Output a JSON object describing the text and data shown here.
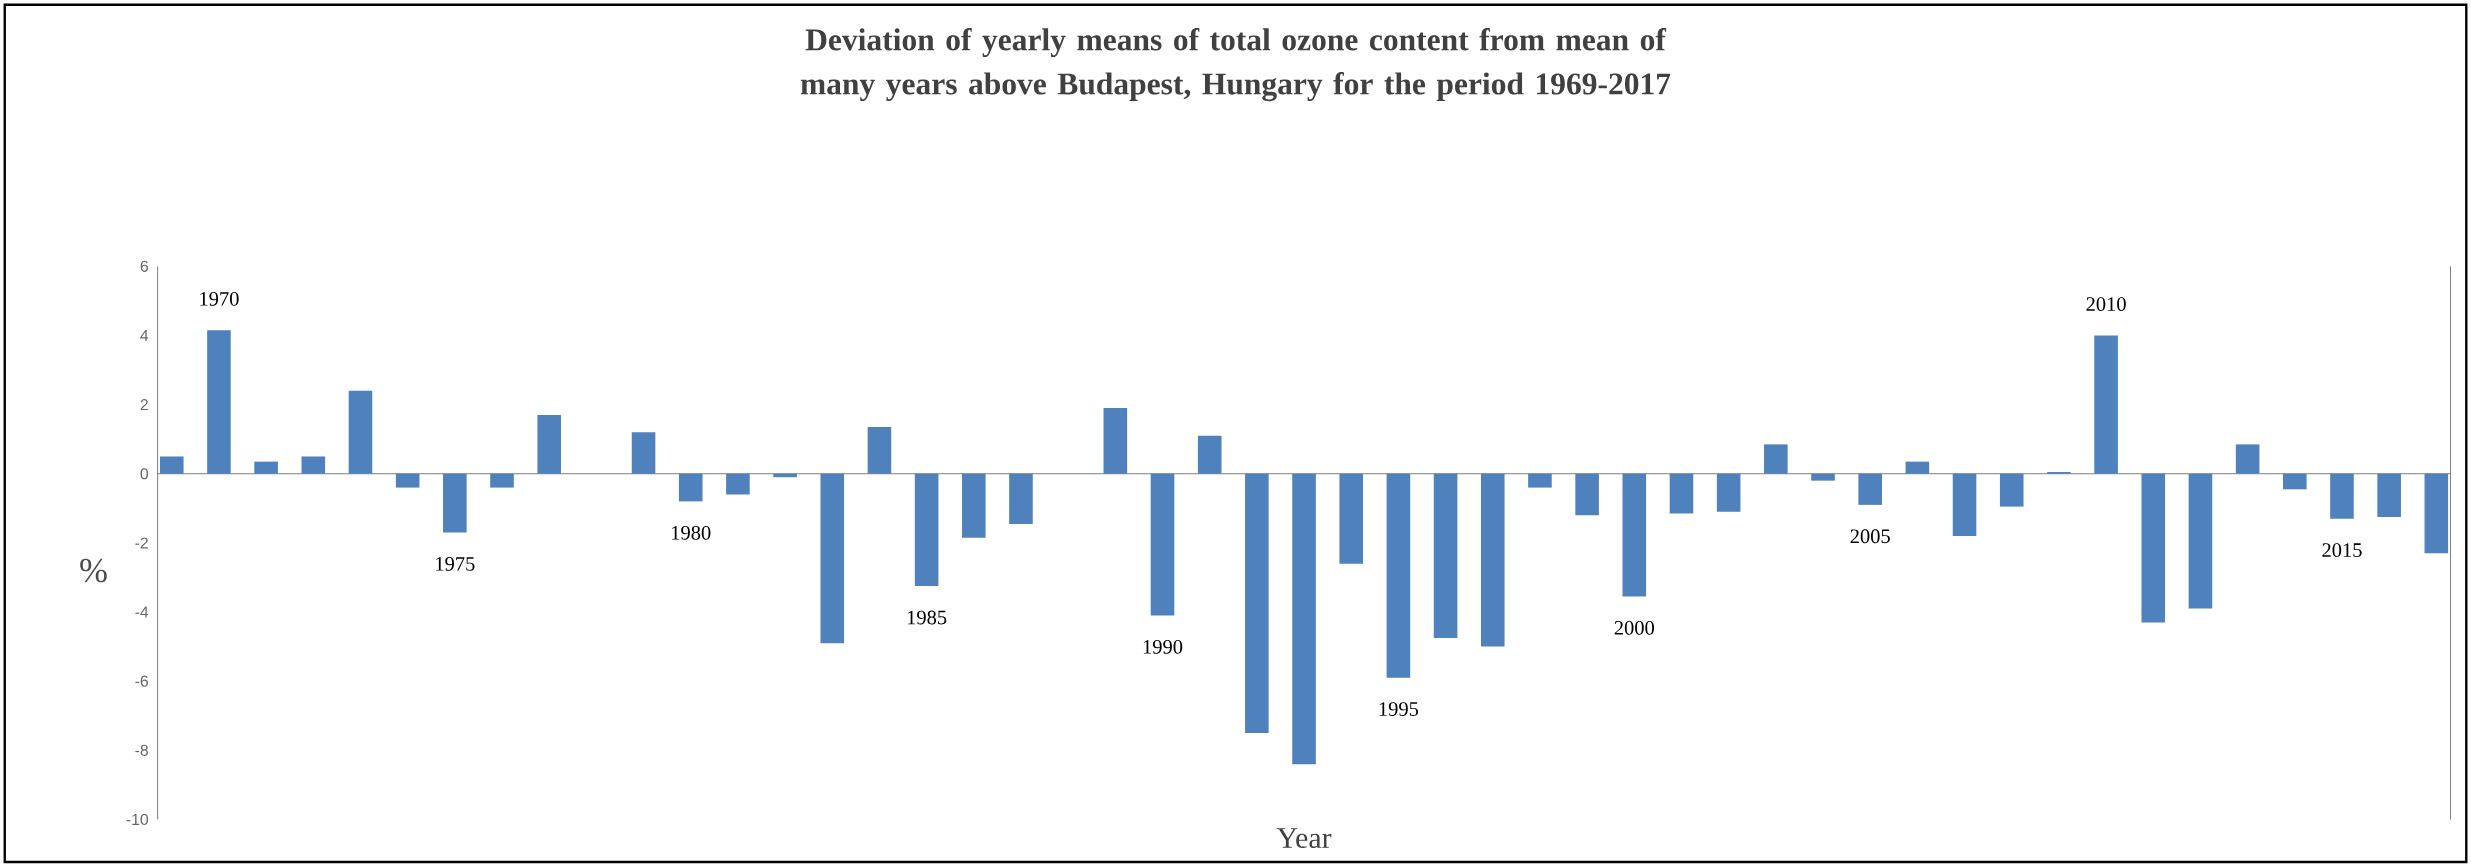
{
  "chart_data": {
    "type": "bar",
    "title": "Deviation of yearly means of total ozone content from mean of many years above Budapest, Hungary for the period 1969-2017",
    "xlabel": "Year",
    "ylabel": "%",
    "categories": [
      null,
      "1970",
      null,
      null,
      null,
      null,
      "1975",
      null,
      null,
      null,
      null,
      "1980",
      null,
      null,
      null,
      null,
      "1985",
      null,
      null,
      null,
      null,
      "1990",
      null,
      null,
      null,
      null,
      "1995",
      null,
      null,
      null,
      null,
      "2000",
      null,
      null,
      null,
      null,
      "2005",
      null,
      null,
      null,
      null,
      "2010",
      null,
      null,
      null,
      null,
      "2015",
      null,
      null
    ],
    "values": [
      0.5,
      4.15,
      0.35,
      0.5,
      2.4,
      -0.4,
      -1.7,
      -0.4,
      1.7,
      null,
      1.2,
      -0.8,
      -0.6,
      -0.1,
      -4.9,
      1.35,
      -3.25,
      -1.85,
      -1.45,
      null,
      1.9,
      -4.1,
      1.1,
      -7.5,
      -8.4,
      -2.6,
      -5.9,
      -4.75,
      -5.0,
      -0.4,
      -1.2,
      -3.55,
      -1.15,
      -1.1,
      0.85,
      -0.2,
      -0.9,
      0.35,
      -1.8,
      -0.95,
      0.05,
      4.0,
      -4.3,
      -3.9,
      0.85,
      -0.45,
      -1.3,
      -1.25,
      -2.3
    ],
    "color": "#4f81bd",
    "ylim": [
      -10,
      6
    ],
    "yticks": [
      -10,
      -8,
      -6,
      -4,
      -2,
      0,
      2,
      4,
      6
    ]
  }
}
